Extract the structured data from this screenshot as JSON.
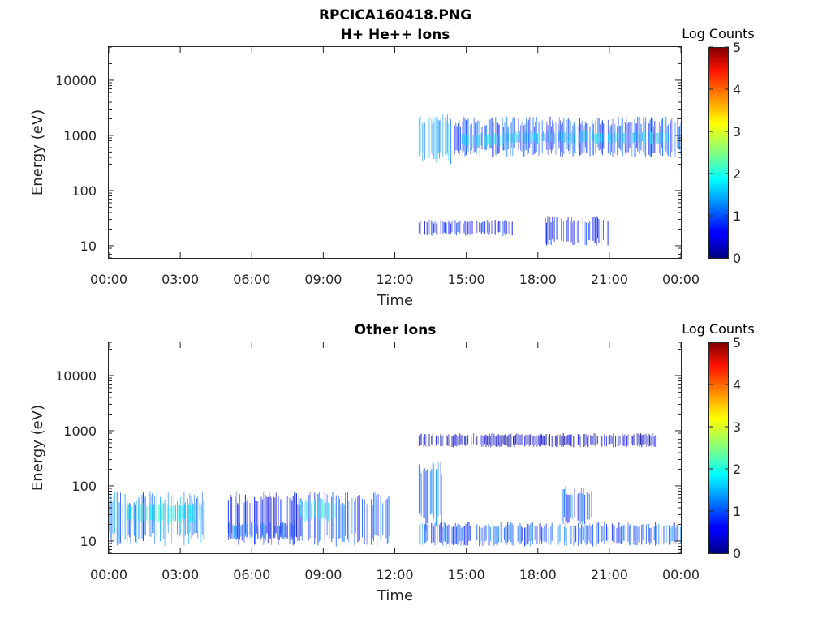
{
  "figure": {
    "title": "RPCICA160418.PNG"
  },
  "chart_data": [
    {
      "type": "heatmap",
      "title": "H+ He++ Ions",
      "xlabel": "Time",
      "ylabel": "Energy (eV)",
      "x_ticks": [
        "00:00",
        "03:00",
        "06:00",
        "09:00",
        "12:00",
        "15:00",
        "18:00",
        "21:00",
        "00:00"
      ],
      "x_range_hours": [
        0,
        24
      ],
      "y_scale": "log",
      "y_ticks": [
        10,
        100,
        1000,
        10000
      ],
      "y_tick_labels": [
        "10",
        "100",
        "1000",
        "10000"
      ],
      "y_range": [
        6,
        40000
      ],
      "colorbar": {
        "label": "Log Counts",
        "range": [
          0,
          5
        ],
        "ticks": [
          "0",
          "1",
          "2",
          "3",
          "4",
          "5"
        ]
      },
      "regions": [
        {
          "t": [
            13.0,
            14.5
          ],
          "e": [
            300,
            2500
          ],
          "level": 1.3
        },
        {
          "t": [
            14.5,
            24.0
          ],
          "e": [
            400,
            2200
          ],
          "level": 0.9
        },
        {
          "t": [
            14.8,
            16.5
          ],
          "e": [
            600,
            1100
          ],
          "level": 1.8
        },
        {
          "t": [
            16.5,
            23.5
          ],
          "e": [
            700,
            1200
          ],
          "level": 1.6
        },
        {
          "t": [
            13.0,
            17.0
          ],
          "e": [
            15,
            30
          ],
          "level": 0.7
        },
        {
          "t": [
            18.3,
            21.0
          ],
          "e": [
            10,
            35
          ],
          "level": 0.7
        }
      ]
    },
    {
      "type": "heatmap",
      "title": "Other Ions",
      "xlabel": "Time",
      "ylabel": "Energy (eV)",
      "x_ticks": [
        "00:00",
        "03:00",
        "06:00",
        "09:00",
        "12:00",
        "15:00",
        "18:00",
        "21:00",
        "00:00"
      ],
      "x_range_hours": [
        0,
        24
      ],
      "y_scale": "log",
      "y_ticks": [
        10,
        100,
        1000,
        10000
      ],
      "y_tick_labels": [
        "10",
        "100",
        "1000",
        "10000"
      ],
      "y_range": [
        6,
        40000
      ],
      "colorbar": {
        "label": "Log Counts",
        "range": [
          0,
          5
        ],
        "ticks": [
          "0",
          "1",
          "2",
          "3",
          "4",
          "5"
        ]
      },
      "regions": [
        {
          "t": [
            0.0,
            4.0
          ],
          "e": [
            8,
            80
          ],
          "level": 1.2
        },
        {
          "t": [
            0.5,
            3.9
          ],
          "e": [
            20,
            50
          ],
          "level": 1.9
        },
        {
          "t": [
            5.0,
            8.0
          ],
          "e": [
            8,
            80
          ],
          "level": 0.6
        },
        {
          "t": [
            5.0,
            7.8
          ],
          "e": [
            10,
            22
          ],
          "level": 1.0
        },
        {
          "t": [
            8.0,
            11.9
          ],
          "e": [
            8,
            80
          ],
          "level": 0.9
        },
        {
          "t": [
            8.0,
            9.5
          ],
          "e": [
            22,
            60
          ],
          "level": 1.9
        },
        {
          "t": [
            13.0,
            14.0
          ],
          "e": [
            15,
            300
          ],
          "level": 1.1
        },
        {
          "t": [
            13.0,
            24.0
          ],
          "e": [
            8,
            22
          ],
          "level": 1.0
        },
        {
          "t": [
            19.0,
            20.3
          ],
          "e": [
            20,
            100
          ],
          "level": 1.0
        },
        {
          "t": [
            13.0,
            23.0
          ],
          "e": [
            500,
            900
          ],
          "level": 0.3
        }
      ]
    }
  ]
}
